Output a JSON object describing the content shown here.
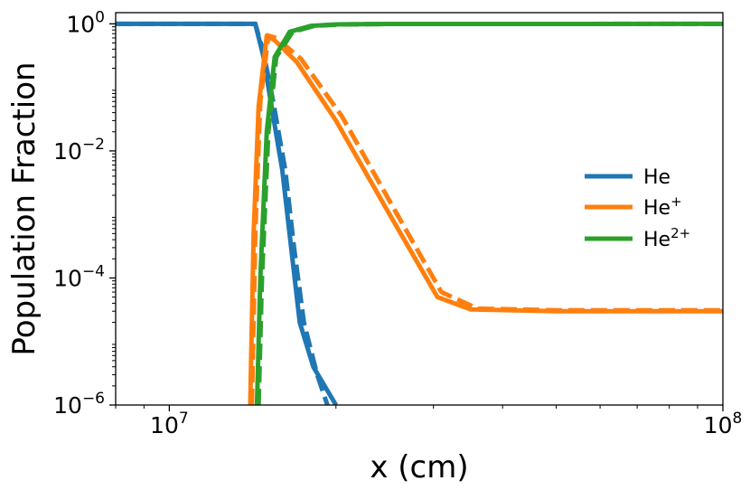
{
  "chart_data": {
    "type": "line",
    "title": "",
    "xlabel": "x (cm)",
    "ylabel": "Population Fraction",
    "xscale": "log",
    "yscale": "log",
    "xlim": [
      8000000,
      100000000
    ],
    "ylim": [
      1e-06,
      1.5
    ],
    "x_major_ticks": [
      {
        "value": 10000000,
        "base": "10",
        "exp": "7"
      },
      {
        "value": 100000000,
        "base": "10",
        "exp": "8"
      }
    ],
    "y_major_ticks": [
      {
        "value": 1,
        "base": "10",
        "exp": "0"
      },
      {
        "value": 0.01,
        "base": "10",
        "exp": "−2"
      },
      {
        "value": 0.0001,
        "base": "10",
        "exp": "−4"
      },
      {
        "value": 1e-06,
        "base": "10",
        "exp": "−6"
      }
    ],
    "grid": false,
    "legend_position": "right",
    "legend": [
      {
        "base": "He",
        "sup": ""
      },
      {
        "base": "He",
        "sup": "+"
      },
      {
        "base": "He",
        "sup": "2+"
      }
    ],
    "series": [
      {
        "color": "#1f77b4",
        "solid": [
          [
            8000000,
            1
          ],
          [
            14300000,
            1
          ],
          [
            14800000,
            0.3
          ],
          [
            15300000,
            0.05
          ],
          [
            16000000,
            0.005
          ],
          [
            16600000,
            0.0003
          ],
          [
            17200000,
            2e-05
          ],
          [
            18200000,
            4e-06
          ],
          [
            20000000,
            1e-06
          ]
        ],
        "dashed": [
          [
            8000000,
            1
          ],
          [
            14300000,
            1
          ],
          [
            14800000,
            0.35
          ],
          [
            15400000,
            0.06
          ],
          [
            16200000,
            0.005
          ],
          [
            16800000,
            0.0003
          ],
          [
            17500000,
            2e-05
          ],
          [
            18500000,
            3e-06
          ],
          [
            19300000,
            1e-06
          ]
        ]
      },
      {
        "color": "#ff7f0e",
        "solid": [
          [
            14000000,
            1e-06
          ],
          [
            14200000,
            0.0005
          ],
          [
            14500000,
            0.05
          ],
          [
            15000000,
            0.65
          ],
          [
            15500000,
            0.55
          ],
          [
            17000000,
            0.25
          ],
          [
            20000000,
            0.03
          ],
          [
            25000000,
            0.001
          ],
          [
            30500000,
            5e-05
          ],
          [
            35000000,
            3.2e-05
          ],
          [
            50000000,
            3e-05
          ],
          [
            100000000,
            3e-05
          ]
        ],
        "dashed": [
          [
            14100000,
            1e-06
          ],
          [
            14300000,
            0.0005
          ],
          [
            14600000,
            0.06
          ],
          [
            15100000,
            0.65
          ],
          [
            15600000,
            0.6
          ],
          [
            17300000,
            0.28
          ],
          [
            20500000,
            0.035
          ],
          [
            25500000,
            0.0012
          ],
          [
            31000000,
            6e-05
          ],
          [
            36000000,
            3.3e-05
          ],
          [
            50000000,
            3.1e-05
          ],
          [
            100000000,
            3.1e-05
          ]
        ]
      },
      {
        "color": "#2ca02c",
        "solid": [
          [
            14400000,
            1e-06
          ],
          [
            14600000,
            0.0001
          ],
          [
            15000000,
            0.02
          ],
          [
            15500000,
            0.3
          ],
          [
            16500000,
            0.75
          ],
          [
            18000000,
            0.93
          ],
          [
            20000000,
            0.98
          ],
          [
            25000000,
            0.995
          ],
          [
            100000000,
            1
          ]
        ],
        "dashed": [
          [
            14500000,
            1e-06
          ],
          [
            14700000,
            0.0001
          ],
          [
            15100000,
            0.02
          ],
          [
            15600000,
            0.3
          ],
          [
            16700000,
            0.75
          ],
          [
            18300000,
            0.93
          ],
          [
            20500000,
            0.98
          ],
          [
            25000000,
            0.995
          ],
          [
            100000000,
            1
          ]
        ]
      }
    ]
  }
}
